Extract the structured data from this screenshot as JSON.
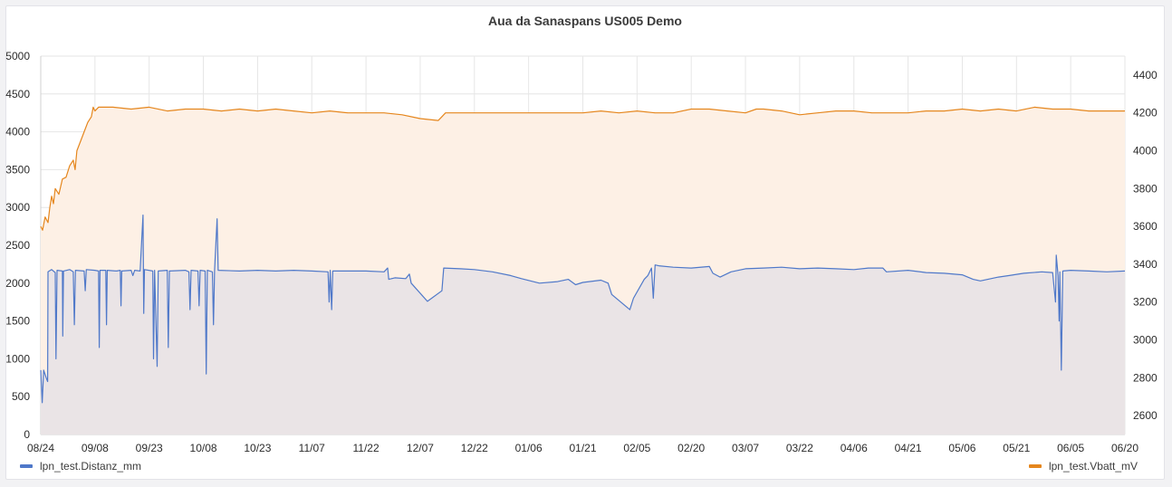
{
  "panel": {
    "title": "Aua da Sanaspans US005 Demo"
  },
  "colors": {
    "series1": "#4f78c9",
    "series2": "#e5861d",
    "fill1": "#e6e2e6",
    "fill2": "#fdf0e5",
    "grid": "#e6e6e6"
  },
  "legend": {
    "left_label": "lpn_test.Distanz_mm",
    "right_label": "lpn_test.Vbatt_mV"
  },
  "chart_data": {
    "type": "line",
    "title": "Aua da Sanaspans US005 Demo",
    "grid": true,
    "legend_position": "bottom",
    "x_range": [
      0,
      300
    ],
    "x_tick_labels": [
      "08/24",
      "09/08",
      "09/23",
      "10/08",
      "10/23",
      "11/07",
      "11/22",
      "12/07",
      "12/22",
      "01/06",
      "01/21",
      "02/05",
      "02/20",
      "03/07",
      "03/22",
      "04/06",
      "04/21",
      "05/06",
      "05/21",
      "06/05",
      "06/20"
    ],
    "y_left": {
      "range": [
        0,
        5000
      ],
      "ticks": [
        0,
        500,
        1000,
        1500,
        2000,
        2500,
        3000,
        3500,
        4000,
        4500,
        5000
      ],
      "label": ""
    },
    "y_right": {
      "range": [
        2500,
        4500
      ],
      "ticks": [
        2600,
        2800,
        3000,
        3200,
        3400,
        3600,
        3800,
        4000,
        4200,
        4400
      ],
      "label": ""
    },
    "series": [
      {
        "name": "lpn_test.Distanz_mm",
        "axis": "left",
        "points": [
          [
            0,
            850
          ],
          [
            0.4,
            420
          ],
          [
            0.8,
            850
          ],
          [
            1.5,
            750
          ],
          [
            1.9,
            700
          ],
          [
            2,
            2150
          ],
          [
            3,
            2180
          ],
          [
            4,
            2140
          ],
          [
            4.2,
            1000
          ],
          [
            4.5,
            2170
          ],
          [
            6,
            2160
          ],
          [
            6.1,
            1300
          ],
          [
            6.3,
            2160
          ],
          [
            8,
            2180
          ],
          [
            9,
            2150
          ],
          [
            9.3,
            1450
          ],
          [
            9.6,
            2170
          ],
          [
            12,
            2160
          ],
          [
            12.3,
            1900
          ],
          [
            12.6,
            2180
          ],
          [
            15,
            2170
          ],
          [
            16,
            2160
          ],
          [
            16.2,
            1150
          ],
          [
            16.4,
            2170
          ],
          [
            18,
            2170
          ],
          [
            18.2,
            1450
          ],
          [
            18.4,
            2170
          ],
          [
            21,
            2160
          ],
          [
            22,
            2170
          ],
          [
            22.2,
            1700
          ],
          [
            22.4,
            2160
          ],
          [
            25,
            2170
          ],
          [
            25.5,
            2100
          ],
          [
            26,
            2170
          ],
          [
            27.5,
            2160
          ],
          [
            28.3,
            2900
          ],
          [
            28.5,
            1600
          ],
          [
            28.7,
            2180
          ],
          [
            31,
            2160
          ],
          [
            31.2,
            1000
          ],
          [
            31.5,
            2170
          ],
          [
            32.2,
            900
          ],
          [
            32.5,
            2160
          ],
          [
            35,
            2170
          ],
          [
            35.3,
            1150
          ],
          [
            35.6,
            2160
          ],
          [
            40,
            2170
          ],
          [
            41,
            2150
          ],
          [
            41.3,
            1650
          ],
          [
            41.6,
            2170
          ],
          [
            43.5,
            2160
          ],
          [
            43.8,
            1700
          ],
          [
            44.1,
            2170
          ],
          [
            45.5,
            2160
          ],
          [
            45.8,
            800
          ],
          [
            46.1,
            2170
          ],
          [
            47.5,
            2150
          ],
          [
            47.8,
            1450
          ],
          [
            48.1,
            2170
          ],
          [
            48.8,
            2850
          ],
          [
            49.1,
            2170
          ],
          [
            55,
            2160
          ],
          [
            60,
            2170
          ],
          [
            65,
            2160
          ],
          [
            70,
            2170
          ],
          [
            75,
            2160
          ],
          [
            79.5,
            2150
          ],
          [
            79.8,
            1750
          ],
          [
            80.1,
            2170
          ],
          [
            80.5,
            1650
          ],
          [
            80.8,
            2160
          ],
          [
            90,
            2160
          ],
          [
            95,
            2150
          ],
          [
            96,
            2200
          ],
          [
            96.3,
            2050
          ],
          [
            98,
            2070
          ],
          [
            101,
            2060
          ],
          [
            102,
            2120
          ],
          [
            102.5,
            2000
          ],
          [
            107,
            1760
          ],
          [
            111,
            1900
          ],
          [
            111.5,
            2200
          ],
          [
            116,
            2190
          ],
          [
            120,
            2180
          ],
          [
            125,
            2150
          ],
          [
            130,
            2100
          ],
          [
            133,
            2060
          ],
          [
            138,
            2000
          ],
          [
            143,
            2020
          ],
          [
            146,
            2050
          ],
          [
            148,
            1980
          ],
          [
            150,
            2010
          ],
          [
            155,
            2040
          ],
          [
            157,
            2000
          ],
          [
            158,
            1850
          ],
          [
            163,
            1650
          ],
          [
            164,
            1800
          ],
          [
            167,
            2050
          ],
          [
            168,
            2100
          ],
          [
            169,
            2200
          ],
          [
            169.5,
            1800
          ],
          [
            170,
            2240
          ],
          [
            171,
            2230
          ],
          [
            175,
            2210
          ],
          [
            180,
            2200
          ],
          [
            185,
            2220
          ],
          [
            186,
            2130
          ],
          [
            188,
            2080
          ],
          [
            191,
            2150
          ],
          [
            195,
            2190
          ],
          [
            200,
            2200
          ],
          [
            205,
            2210
          ],
          [
            210,
            2190
          ],
          [
            215,
            2200
          ],
          [
            220,
            2190
          ],
          [
            225,
            2180
          ],
          [
            229,
            2200
          ],
          [
            233,
            2200
          ],
          [
            234,
            2150
          ],
          [
            240,
            2170
          ],
          [
            245,
            2140
          ],
          [
            250,
            2130
          ],
          [
            255,
            2110
          ],
          [
            258,
            2050
          ],
          [
            260,
            2030
          ],
          [
            265,
            2080
          ],
          [
            268,
            2100
          ],
          [
            272,
            2130
          ],
          [
            277,
            2150
          ],
          [
            280,
            2140
          ],
          [
            280.8,
            1750
          ],
          [
            281,
            2370
          ],
          [
            281.5,
            2100
          ],
          [
            281.8,
            1500
          ],
          [
            282,
            2150
          ],
          [
            282.4,
            850
          ],
          [
            282.8,
            2160
          ],
          [
            285,
            2170
          ],
          [
            290,
            2160
          ],
          [
            295,
            2150
          ],
          [
            300,
            2160
          ]
        ]
      },
      {
        "name": "lpn_test.Vbatt_mV",
        "axis": "right",
        "points": [
          [
            0,
            3600
          ],
          [
            0.5,
            3580
          ],
          [
            1.2,
            3650
          ],
          [
            2,
            3620
          ],
          [
            2.5,
            3700
          ],
          [
            3,
            3760
          ],
          [
            3.5,
            3720
          ],
          [
            4,
            3800
          ],
          [
            5,
            3770
          ],
          [
            6,
            3850
          ],
          [
            7,
            3860
          ],
          [
            8,
            3920
          ],
          [
            9,
            3950
          ],
          [
            9.5,
            3900
          ],
          [
            10,
            4000
          ],
          [
            11,
            4050
          ],
          [
            12,
            4100
          ],
          [
            13,
            4150
          ],
          [
            14,
            4180
          ],
          [
            14.5,
            4230
          ],
          [
            15,
            4210
          ],
          [
            16,
            4230
          ],
          [
            20,
            4230
          ],
          [
            25,
            4220
          ],
          [
            30,
            4230
          ],
          [
            35,
            4210
          ],
          [
            40,
            4220
          ],
          [
            45,
            4220
          ],
          [
            50,
            4210
          ],
          [
            55,
            4220
          ],
          [
            60,
            4210
          ],
          [
            65,
            4220
          ],
          [
            70,
            4210
          ],
          [
            75,
            4200
          ],
          [
            80,
            4210
          ],
          [
            85,
            4200
          ],
          [
            90,
            4200
          ],
          [
            95,
            4200
          ],
          [
            100,
            4190
          ],
          [
            105,
            4170
          ],
          [
            110,
            4160
          ],
          [
            111,
            4180
          ],
          [
            112,
            4200
          ],
          [
            115,
            4200
          ],
          [
            120,
            4200
          ],
          [
            140,
            4200
          ],
          [
            150,
            4200
          ],
          [
            155,
            4210
          ],
          [
            160,
            4200
          ],
          [
            165,
            4210
          ],
          [
            170,
            4200
          ],
          [
            175,
            4200
          ],
          [
            180,
            4220
          ],
          [
            185,
            4220
          ],
          [
            190,
            4210
          ],
          [
            195,
            4200
          ],
          [
            198,
            4220
          ],
          [
            200,
            4220
          ],
          [
            205,
            4210
          ],
          [
            210,
            4190
          ],
          [
            215,
            4200
          ],
          [
            220,
            4210
          ],
          [
            225,
            4210
          ],
          [
            230,
            4200
          ],
          [
            235,
            4200
          ],
          [
            240,
            4200
          ],
          [
            245,
            4210
          ],
          [
            250,
            4210
          ],
          [
            255,
            4220
          ],
          [
            260,
            4210
          ],
          [
            265,
            4220
          ],
          [
            270,
            4210
          ],
          [
            275,
            4230
          ],
          [
            280,
            4220
          ],
          [
            285,
            4220
          ],
          [
            290,
            4210
          ],
          [
            295,
            4210
          ],
          [
            300,
            4210
          ]
        ]
      }
    ]
  }
}
